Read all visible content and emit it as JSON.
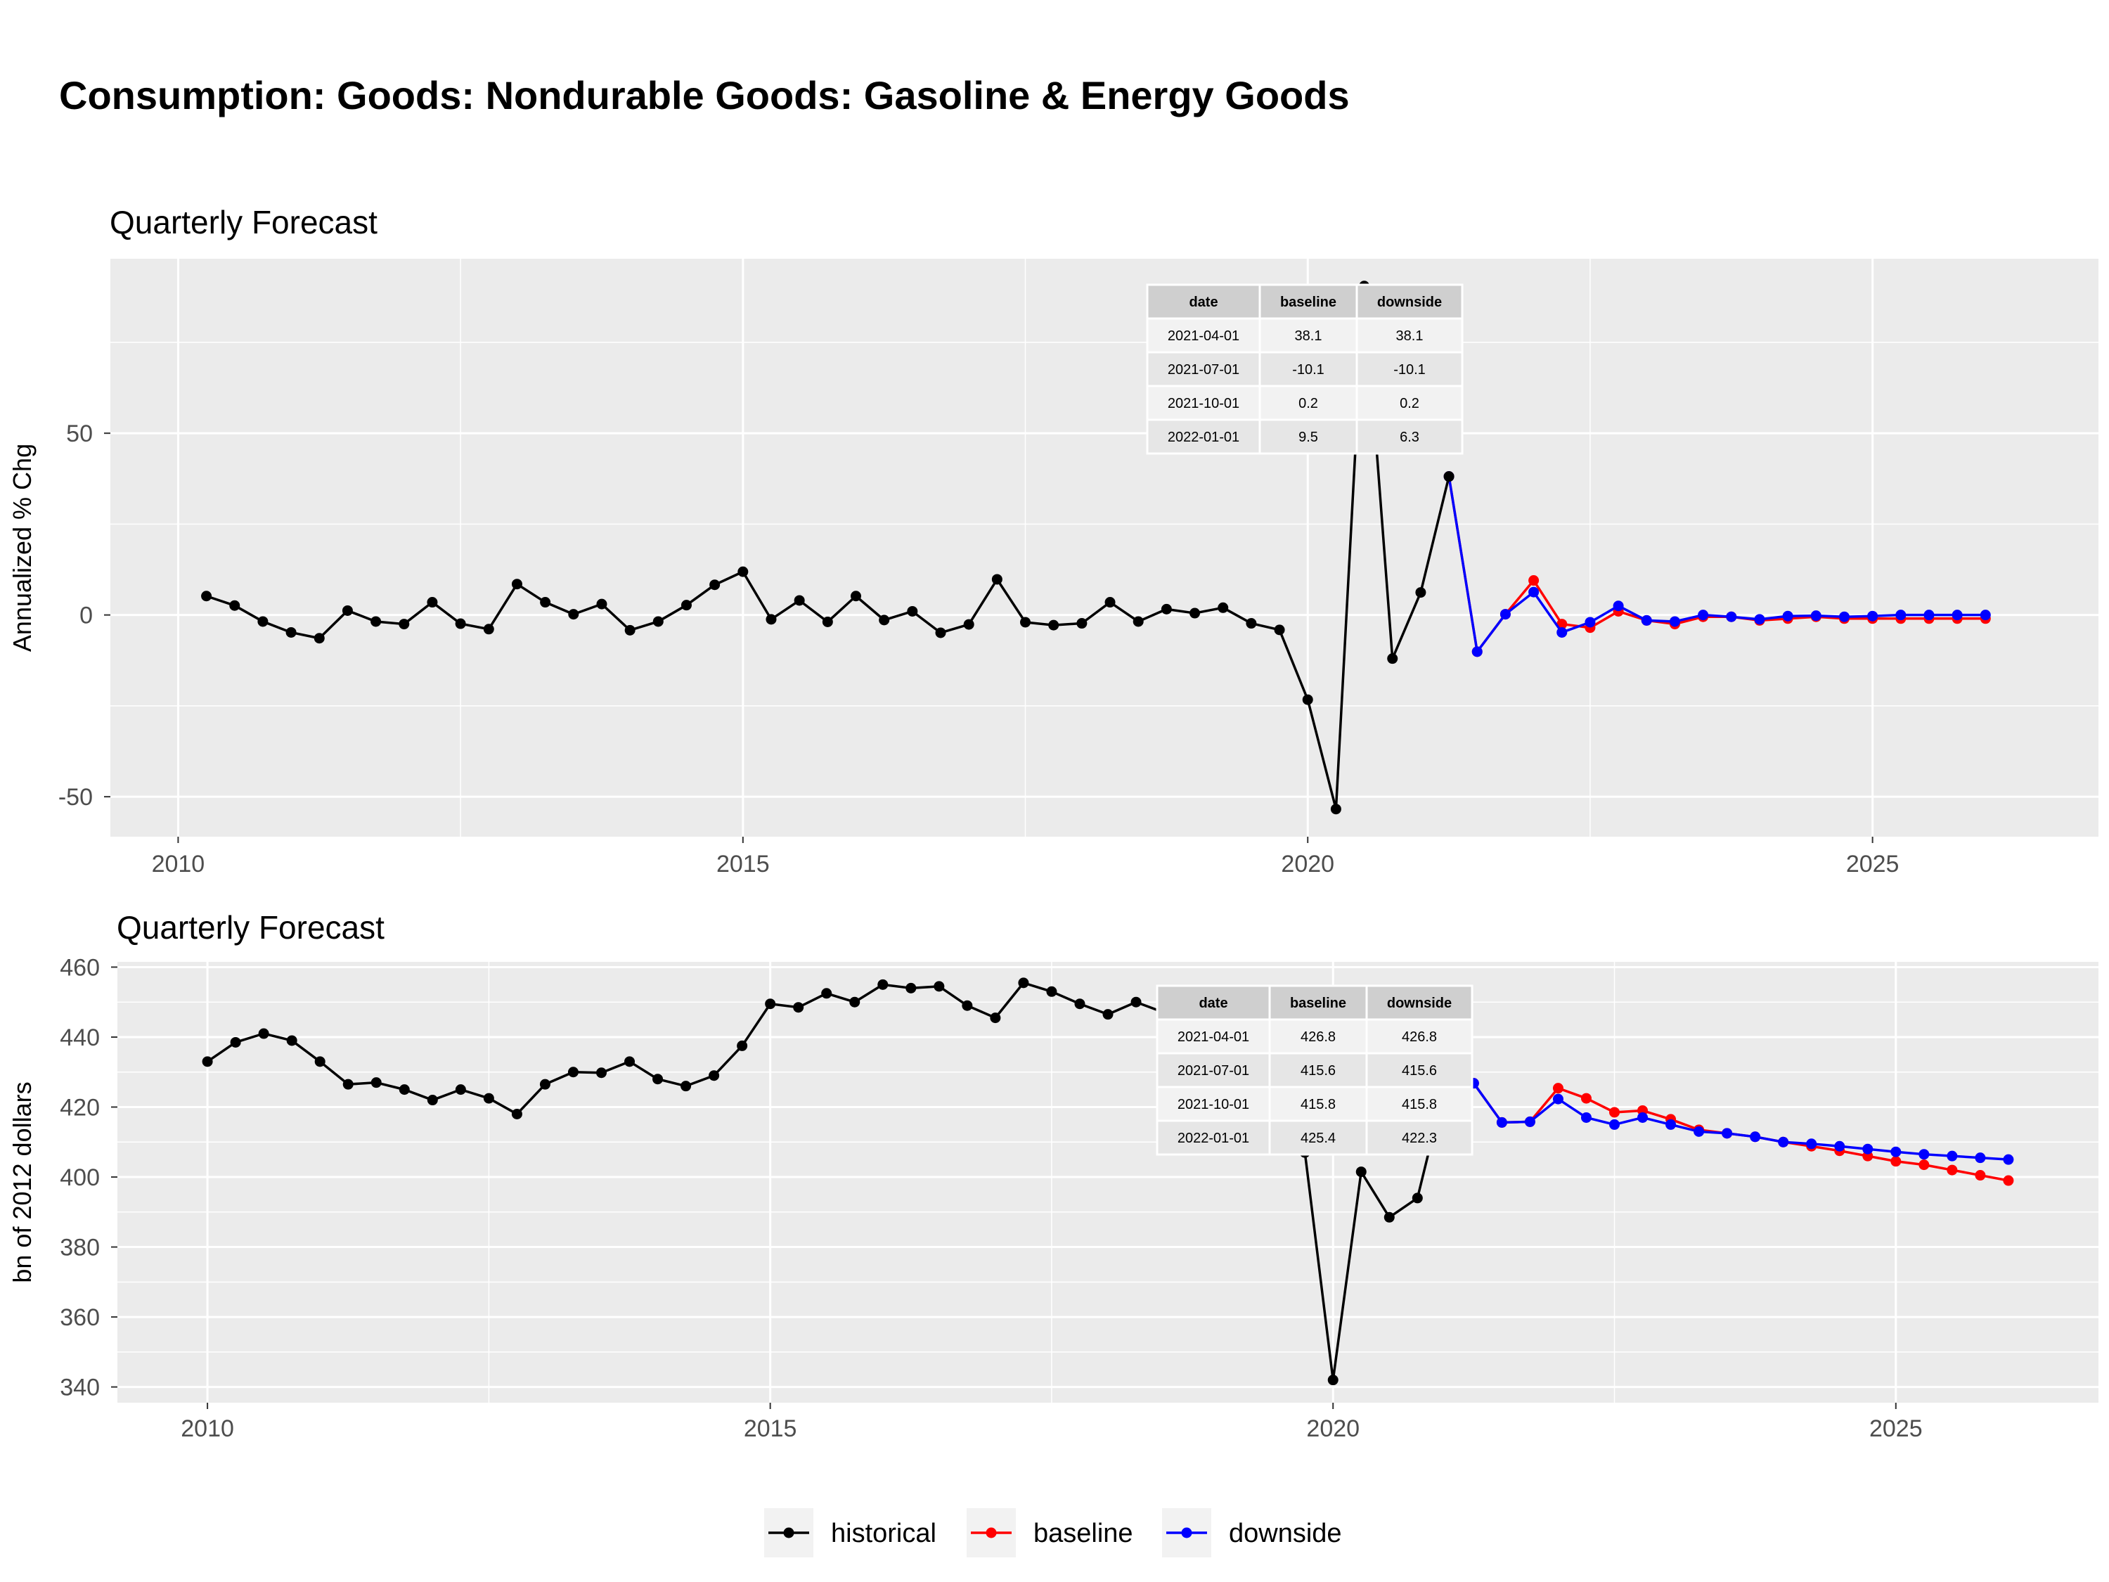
{
  "title": "Consumption: Goods: Nondurable Goods: Gasoline & Energy Goods",
  "legend": [
    {
      "label": "historical",
      "color": "#000000"
    },
    {
      "label": "baseline",
      "color": "#ff0000"
    },
    {
      "label": "downside",
      "color": "#0000ff"
    }
  ],
  "chart_data": [
    {
      "type": "line",
      "title": "Quarterly Forecast",
      "ylabel": "Annualized % Chg",
      "xlim": [
        2009.4,
        2027.0
      ],
      "ylim": [
        -61,
        98
      ],
      "x_ticks": [
        2010,
        2015,
        2020,
        2025
      ],
      "x_tick_labels": [
        "2010",
        "2015",
        "2020",
        "2025"
      ],
      "y_ticks": [
        -50,
        0,
        50
      ],
      "y_tick_labels": [
        "-50",
        "0",
        "50"
      ],
      "grid": true,
      "series": [
        {
          "name": "historical",
          "color": "#000000",
          "start": 2010.25,
          "step": 0.25,
          "values": [
            5.2,
            2.6,
            -1.8,
            -4.8,
            -6.4,
            1.2,
            -1.8,
            -2.5,
            3.5,
            -2.4,
            -3.9,
            8.5,
            3.5,
            0.2,
            3.0,
            -4.2,
            -1.8,
            2.7,
            8.3,
            11.9,
            -1.2,
            4.0,
            -1.9,
            5.2,
            -1.4,
            1.0,
            -4.9,
            -2.6,
            9.8,
            -2.0,
            -2.8,
            -2.3,
            3.5,
            -1.8,
            1.6,
            0.5,
            2.0,
            -2.3,
            -4.1,
            -23.3,
            -53.4,
            90.5,
            -12.0,
            6.2,
            38.1
          ]
        },
        {
          "name": "baseline",
          "color": "#ff0000",
          "start": 2021.25,
          "step": 0.25,
          "values": [
            38.1,
            -10.1,
            0.2,
            9.5,
            -2.5,
            -3.5,
            1.0,
            -1.5,
            -2.5,
            -0.5,
            -0.5,
            -1.5,
            -1.0,
            -0.5,
            -1.0,
            -1.0,
            -1.0,
            -1.0,
            -1.0,
            -1.0
          ]
        },
        {
          "name": "downside",
          "color": "#0000ff",
          "start": 2021.25,
          "step": 0.25,
          "values": [
            38.1,
            -10.1,
            0.2,
            6.3,
            -4.8,
            -2.0,
            2.5,
            -1.5,
            -1.8,
            0.0,
            -0.5,
            -1.2,
            -0.3,
            -0.2,
            -0.5,
            -0.3,
            0.0,
            0.0,
            0.0,
            0.0
          ]
        }
      ],
      "table": {
        "headers": [
          "date",
          "baseline",
          "downside"
        ],
        "rows": [
          [
            "2021-04-01",
            "38.1",
            "38.1"
          ],
          [
            "2021-07-01",
            "-10.1",
            "-10.1"
          ],
          [
            "2021-10-01",
            "0.2",
            "0.2"
          ],
          [
            "2022-01-01",
            "9.5",
            "6.3"
          ]
        ]
      }
    },
    {
      "type": "line",
      "title": "Quarterly Forecast",
      "ylabel": "bn of 2012 dollars",
      "xlim": [
        2009.2,
        2026.8
      ],
      "ylim": [
        335.5,
        461.5
      ],
      "x_ticks": [
        2010,
        2015,
        2020,
        2025
      ],
      "x_tick_labels": [
        "2010",
        "2015",
        "2020",
        "2025"
      ],
      "y_ticks": [
        340,
        360,
        380,
        400,
        420,
        440,
        460
      ],
      "y_tick_labels": [
        "340",
        "360",
        "380",
        "400",
        "420",
        "440",
        "460"
      ],
      "grid": true,
      "series": [
        {
          "name": "historical",
          "color": "#000000",
          "start": 2010.0,
          "step": 0.25,
          "values": [
            433.0,
            438.5,
            441.0,
            439.0,
            433.0,
            426.5,
            427.0,
            425.0,
            422.0,
            425.0,
            422.5,
            418.0,
            426.5,
            430.0,
            429.8,
            433.0,
            428.0,
            426.0,
            429.0,
            437.5,
            449.5,
            448.5,
            452.5,
            450.0,
            455.0,
            454.0,
            454.5,
            449.0,
            445.5,
            455.5,
            453.0,
            449.5,
            446.5,
            450.0,
            447.0,
            445.0,
            446.0,
            441.0,
            437.0,
            407.0,
            342.0,
            401.5,
            388.5,
            394.0,
            426.8
          ]
        },
        {
          "name": "baseline",
          "color": "#ff0000",
          "start": 2021.25,
          "step": 0.25,
          "values": [
            426.8,
            415.6,
            415.8,
            425.4,
            422.5,
            418.5,
            419.0,
            416.5,
            413.5,
            412.5,
            411.5,
            410.0,
            408.8,
            407.5,
            406.0,
            404.5,
            403.5,
            402.0,
            400.5,
            399.0
          ]
        },
        {
          "name": "downside",
          "color": "#0000ff",
          "start": 2021.25,
          "step": 0.25,
          "values": [
            426.8,
            415.6,
            415.8,
            422.3,
            417.0,
            415.0,
            417.0,
            415.0,
            413.0,
            412.5,
            411.5,
            410.0,
            409.5,
            408.8,
            408.0,
            407.2,
            406.5,
            406.0,
            405.5,
            405.0
          ]
        }
      ],
      "table": {
        "headers": [
          "date",
          "baseline",
          "downside"
        ],
        "rows": [
          [
            "2021-04-01",
            "426.8",
            "426.8"
          ],
          [
            "2021-07-01",
            "415.6",
            "415.6"
          ],
          [
            "2021-10-01",
            "415.8",
            "415.8"
          ],
          [
            "2022-01-01",
            "425.4",
            "422.3"
          ]
        ]
      }
    }
  ]
}
